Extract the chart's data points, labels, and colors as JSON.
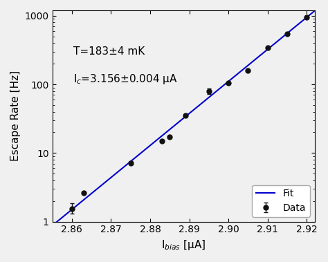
{
  "data_x": [
    2.86,
    2.863,
    2.875,
    2.883,
    2.885,
    2.889,
    2.895,
    2.9,
    2.905,
    2.91,
    2.915,
    2.92
  ],
  "data_y": [
    1.55,
    2.6,
    7.2,
    15.0,
    17.0,
    35.0,
    80.0,
    105.0,
    160.0,
    340.0,
    540.0,
    950.0
  ],
  "data_yerr_low": [
    0.25,
    0.0,
    0.4,
    0.0,
    0.0,
    0.0,
    8.0,
    0.0,
    0.0,
    0.0,
    0.0,
    0.0
  ],
  "data_yerr_high": [
    0.3,
    0.0,
    0.4,
    0.0,
    0.0,
    0.0,
    8.0,
    0.0,
    0.0,
    0.0,
    0.0,
    0.0
  ],
  "fit_log_slope": 46.7,
  "fit_log_intercept_x0": 2.86,
  "fit_log_y0": 0.176,
  "fit_xstart": 2.854,
  "fit_xend": 2.923,
  "xlim": [
    2.855,
    2.922
  ],
  "ylim_log": [
    1.0,
    1200.0
  ],
  "xlabel": "I$_{bias}$ [μA]",
  "ylabel": "Escape Rate [Hz]",
  "annotation1": "T=183±4 mK",
  "annotation2": "I$_c$=3.156±0.004 μA",
  "fit_color": "#0000cc",
  "data_color": "#111111",
  "legend_fit": "Fit",
  "legend_data": "Data",
  "xticks": [
    2.86,
    2.87,
    2.88,
    2.89,
    2.9,
    2.91,
    2.92
  ],
  "figsize": [
    4.74,
    3.79
  ],
  "dpi": 100,
  "bg_color": "#f0f0f0"
}
